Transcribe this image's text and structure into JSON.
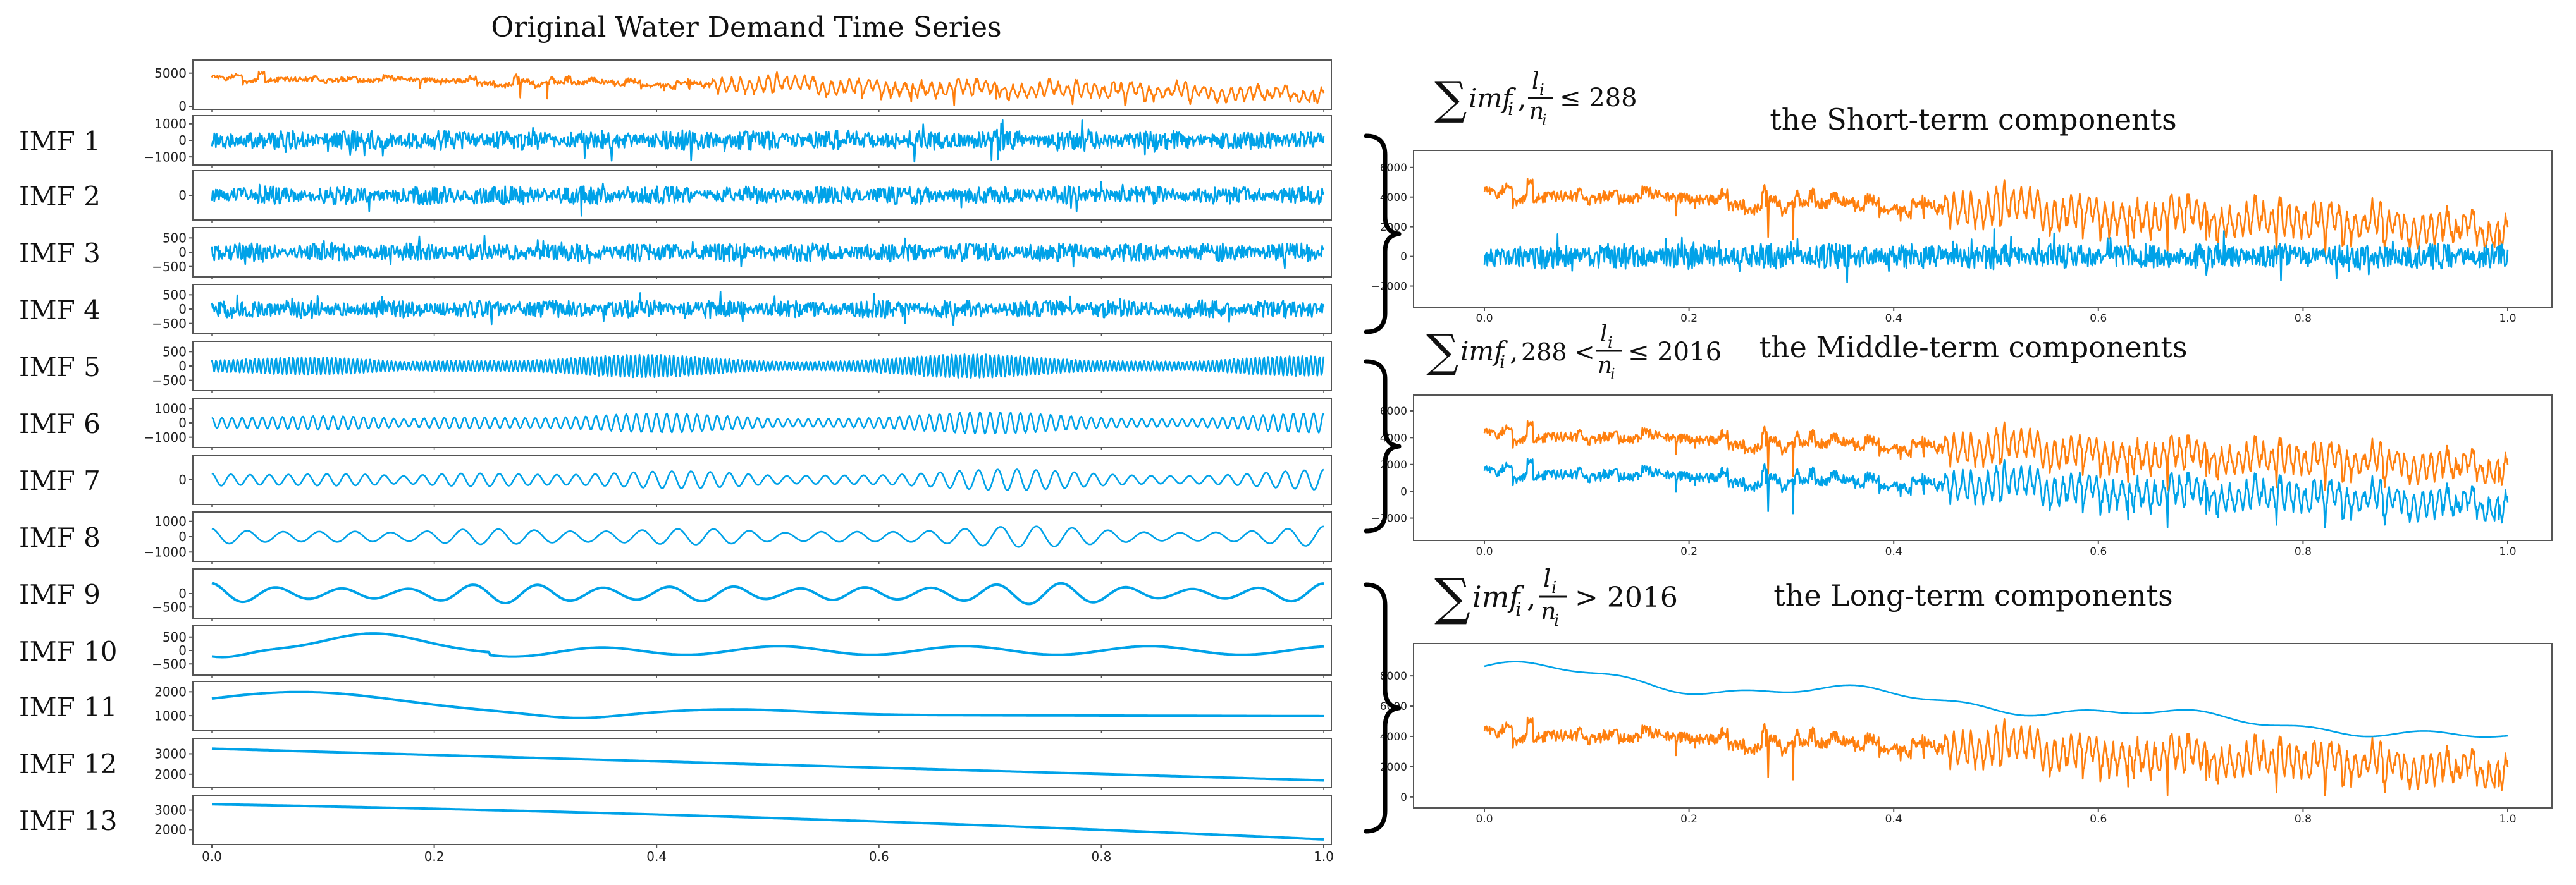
{
  "figure_title": "Original Water Demand Time Series",
  "colors": {
    "original": "#ff7f0e",
    "imf": "#00a2e8",
    "axis": "#555555"
  },
  "chart_data": [
    {
      "type": "line",
      "name": "original",
      "label": "",
      "title": "Original Water Demand Time Series",
      "color": "#ff7f0e",
      "kind": "demand",
      "seed": 11,
      "ylim": [
        0,
        6500
      ],
      "yticks": [
        0,
        5000
      ],
      "ytick_labels": [
        "0",
        "5000"
      ],
      "xlim": [
        0,
        1
      ]
    },
    {
      "type": "line",
      "name": "imf1",
      "label": "IMF 1",
      "color": "#00a2e8",
      "kind": "noise",
      "seed": 21,
      "amp": 620,
      "ylim": [
        -1300,
        1300
      ],
      "yticks": [
        -1000,
        0,
        1000
      ],
      "ytick_labels": [
        "−1000",
        "0",
        "1000"
      ],
      "xlim": [
        0,
        1
      ]
    },
    {
      "type": "line",
      "name": "imf2",
      "label": "IMF 2",
      "color": "#00a2e8",
      "kind": "noise",
      "seed": 31,
      "amp": 520,
      "ylim": [
        -1200,
        1200
      ],
      "yticks": [
        0
      ],
      "ytick_labels": [
        "0"
      ],
      "xlim": [
        0,
        1
      ]
    },
    {
      "type": "line",
      "name": "imf3",
      "label": "IMF 3",
      "color": "#00a2e8",
      "kind": "noise",
      "seed": 41,
      "amp": 330,
      "ylim": [
        -750,
        750
      ],
      "yticks": [
        -500,
        0,
        500
      ],
      "ytick_labels": [
        "−500",
        "0",
        "500"
      ],
      "xlim": [
        0,
        1
      ]
    },
    {
      "type": "line",
      "name": "imf4",
      "label": "IMF 4",
      "color": "#00a2e8",
      "kind": "noise",
      "seed": 51,
      "amp": 320,
      "ylim": [
        -750,
        750
      ],
      "yticks": [
        -500,
        0,
        500
      ],
      "ytick_labels": [
        "−500",
        "0",
        "500"
      ],
      "xlim": [
        0,
        1
      ]
    },
    {
      "type": "line",
      "name": "imf5",
      "label": "IMF 5",
      "color": "#00a2e8",
      "kind": "oscill",
      "seed": 61,
      "cycles": 260,
      "amp": 420,
      "ylim": [
        -750,
        750
      ],
      "yticks": [
        -500,
        0,
        500
      ],
      "ytick_labels": [
        "−500",
        "0",
        "500"
      ],
      "xlim": [
        0,
        1
      ]
    },
    {
      "type": "line",
      "name": "imf6",
      "label": "IMF 6",
      "color": "#00a2e8",
      "kind": "oscill",
      "seed": 71,
      "cycles": 110,
      "amp": 760,
      "ylim": [
        -1500,
        1500
      ],
      "yticks": [
        -1000,
        0,
        1000
      ],
      "ytick_labels": [
        "−1000",
        "0",
        "1000"
      ],
      "xlim": [
        0,
        1
      ]
    },
    {
      "type": "line",
      "name": "imf7",
      "label": "IMF 7",
      "color": "#00a2e8",
      "kind": "oscill",
      "seed": 81,
      "cycles": 58,
      "amp": 800,
      "ylim": [
        -1600,
        1600
      ],
      "yticks": [
        0
      ],
      "ytick_labels": [
        "0"
      ],
      "xlim": [
        0,
        1
      ]
    },
    {
      "type": "line",
      "name": "imf8",
      "label": "IMF 8",
      "color": "#00a2e8",
      "kind": "oscill",
      "seed": 91,
      "cycles": 31,
      "amp": 720,
      "ylim": [
        -1400,
        1400
      ],
      "yticks": [
        -1000,
        0,
        1000
      ],
      "ytick_labels": [
        "−1000",
        "0",
        "1000"
      ],
      "xlim": [
        0,
        1
      ]
    },
    {
      "type": "line",
      "name": "imf9",
      "label": "IMF 9",
      "color": "#00a2e8",
      "kind": "oscill",
      "seed": 101,
      "cycles": 17,
      "amp": 450,
      "ylim": [
        -800,
        800
      ],
      "yticks": [
        -500,
        0
      ],
      "ytick_labels": [
        "−500",
        "0"
      ],
      "xlim": [
        0,
        1
      ]
    },
    {
      "type": "line",
      "name": "imf10",
      "label": "IMF 10",
      "color": "#00a2e8",
      "kind": "imf10",
      "seed": 111,
      "ylim": [
        -800,
        800
      ],
      "yticks": [
        -500,
        0,
        500
      ],
      "ytick_labels": [
        "−500",
        "0",
        "500"
      ],
      "xlim": [
        0,
        1
      ]
    },
    {
      "type": "line",
      "name": "imf11",
      "label": "IMF 11",
      "color": "#00a2e8",
      "kind": "imf11",
      "seed": 121,
      "ylim": [
        500,
        2300
      ],
      "yticks": [
        1000,
        2000
      ],
      "ytick_labels": [
        "1000",
        "2000"
      ],
      "xlim": [
        0,
        1
      ]
    },
    {
      "type": "line",
      "name": "imf12",
      "label": "IMF 12",
      "color": "#00a2e8",
      "kind": "linear",
      "from": 3250,
      "to": 1700,
      "ylim": [
        1500,
        3600
      ],
      "yticks": [
        2000,
        3000
      ],
      "ytick_labels": [
        "2000",
        "3000"
      ],
      "xlim": [
        0,
        1
      ]
    },
    {
      "type": "line",
      "name": "imf13",
      "label": "IMF 13",
      "color": "#00a2e8",
      "kind": "curve13",
      "from": 3300,
      "to": 1500,
      "ylim": [
        1400,
        3600
      ],
      "yticks": [
        2000,
        3000
      ],
      "ytick_labels": [
        "2000",
        "3000"
      ],
      "xlim": [
        0,
        1
      ],
      "xticks": [
        0.0,
        0.2,
        0.4,
        0.6,
        0.8,
        1.0
      ],
      "xtick_labels": [
        "0.0",
        "0.2",
        "0.4",
        "0.6",
        "0.8",
        "1.0"
      ]
    },
    {
      "type": "line",
      "name": "short_term",
      "title": "the Short-term components",
      "xlim": [
        0,
        1
      ],
      "ylim": [
        -3000,
        6800
      ],
      "yticks": [
        -2000,
        0,
        2000,
        4000,
        6000
      ],
      "ytick_labels": [
        "−2000",
        "0",
        "2000",
        "4000",
        "6000"
      ],
      "xticks": [
        0.0,
        0.2,
        0.4,
        0.6,
        0.8,
        1.0
      ],
      "xtick_labels": [
        "0.0",
        "0.2",
        "0.4",
        "0.6",
        "0.8",
        "1.0"
      ],
      "series": [
        {
          "name": "original",
          "color": "#ff7f0e",
          "kind": "demand",
          "seed": 11,
          "offset": 0
        },
        {
          "name": "short-term sum",
          "color": "#00a2e8",
          "kind": "noise",
          "seed": 131,
          "amp": 900,
          "offset": 0
        }
      ]
    },
    {
      "type": "line",
      "name": "middle_term",
      "title": "the Middle-term components",
      "xlim": [
        0,
        1
      ],
      "ylim": [
        -3200,
        6800
      ],
      "yticks": [
        -2000,
        0,
        2000,
        4000,
        6000
      ],
      "ytick_labels": [
        "−2000",
        "0",
        "2000",
        "4000",
        "6000"
      ],
      "xticks": [
        0.0,
        0.2,
        0.4,
        0.6,
        0.8,
        1.0
      ],
      "xtick_labels": [
        "0.0",
        "0.2",
        "0.4",
        "0.6",
        "0.8",
        "1.0"
      ],
      "series": [
        {
          "name": "original",
          "color": "#ff7f0e",
          "kind": "demand",
          "seed": 11,
          "offset": 0
        },
        {
          "name": "middle-term sum",
          "color": "#00a2e8",
          "kind": "demand",
          "seed": 11,
          "offset": -2800
        }
      ]
    },
    {
      "type": "line",
      "name": "long_term",
      "title": "the Long-term components",
      "xlim": [
        0,
        1
      ],
      "ylim": [
        -300,
        9800
      ],
      "yticks": [
        0,
        2000,
        4000,
        6000,
        8000
      ],
      "ytick_labels": [
        "0",
        "2000",
        "4000",
        "6000",
        "8000"
      ],
      "xticks": [
        0.0,
        0.2,
        0.4,
        0.6,
        0.8,
        1.0
      ],
      "xtick_labels": [
        "0.0",
        "0.2",
        "0.4",
        "0.6",
        "0.8",
        "1.0"
      ],
      "series": [
        {
          "name": "original",
          "color": "#ff7f0e",
          "kind": "demand",
          "seed": 11,
          "offset": 0
        },
        {
          "name": "long-term sum",
          "color": "#00a2e8",
          "kind": "trend",
          "from": 8400,
          "to": 3800
        }
      ]
    }
  ],
  "formulas": {
    "short": {
      "sum": "∑",
      "term": "imf",
      "sub": "i",
      "comma": ",",
      "frac_num": "l",
      "frac_num_sub": "i",
      "frac_den": "n",
      "frac_den_sub": "i",
      "relation": "≤ 288"
    },
    "middle": {
      "sum": "∑",
      "term": "imf",
      "sub": "i",
      "comma": ",",
      "lower": "288 <",
      "frac_num": "l",
      "frac_num_sub": "i",
      "frac_den": "n",
      "frac_den_sub": "i",
      "relation": "≤ 2016"
    },
    "long": {
      "sum": "∑",
      "term": "imf",
      "sub": "i",
      "comma": ",",
      "frac_num": "l",
      "frac_num_sub": "i",
      "frac_den": "n",
      "frac_den_sub": "i",
      "relation": "> 2016"
    }
  }
}
